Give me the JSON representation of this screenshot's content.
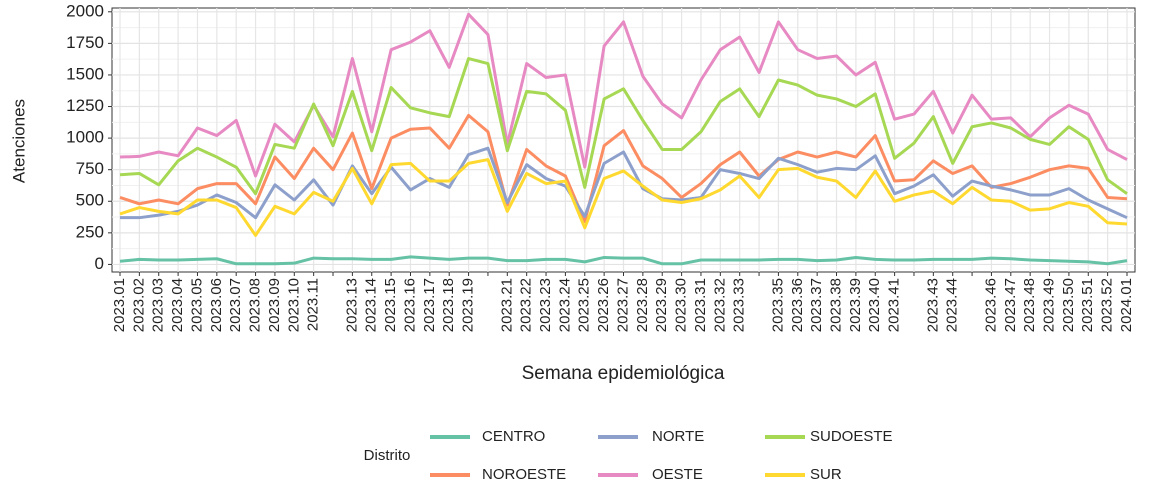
{
  "chart_data": {
    "type": "line",
    "y_label": "Atenciones",
    "x_label": "Semana epidemiológica",
    "legend_title": "Distrito",
    "categories": [
      "2023.01",
      "2023.02",
      "2023.03",
      "2023.04",
      "2023.05",
      "2023.06",
      "2023.07",
      "2023.08",
      "2023.09",
      "2023.10",
      "2023.11",
      null,
      "2023.13",
      "2023.14",
      "2023.15",
      "2023.16",
      "2023.17",
      "2023.18",
      "2023.19",
      null,
      "2023.21",
      "2023.22",
      "2023.23",
      "2023.24",
      "2023.25",
      "2023.26",
      "2023.27",
      "2023.28",
      "2023.29",
      "2023.30",
      "2023.31",
      "2023.32",
      "2023.33",
      null,
      "2023.35",
      "2023.36",
      "2023.37",
      "2023.38",
      "2023.39",
      "2023.40",
      "2023.41",
      null,
      "2023.43",
      "2023.44",
      null,
      "2023.46",
      "2023.47",
      "2023.48",
      "2023.49",
      "2023.50",
      "2023.51",
      "2023.52",
      "2024.01"
    ],
    "ylim": [
      -60,
      2030
    ],
    "yticks": [
      0,
      250,
      500,
      750,
      1000,
      1250,
      1500,
      1750,
      2000
    ],
    "grid": true,
    "legend_position": "bottom",
    "series": [
      {
        "name": "CENTRO",
        "color": "#66c2a5",
        "values": [
          25,
          40,
          35,
          35,
          40,
          45,
          5,
          5,
          5,
          10,
          50,
          45,
          45,
          40,
          40,
          60,
          50,
          40,
          50,
          50,
          30,
          30,
          40,
          40,
          20,
          55,
          50,
          50,
          5,
          5,
          35,
          35,
          35,
          35,
          40,
          40,
          30,
          35,
          55,
          40,
          35,
          35,
          40,
          40,
          40,
          50,
          45,
          35,
          30,
          25,
          20,
          5,
          30
        ]
      },
      {
        "name": "NOROESTE",
        "color": "#fc8d62",
        "values": [
          530,
          480,
          510,
          480,
          600,
          640,
          640,
          480,
          850,
          680,
          920,
          750,
          1040,
          600,
          1000,
          1070,
          1080,
          920,
          1180,
          1050,
          470,
          910,
          780,
          700,
          340,
          940,
          1060,
          780,
          680,
          530,
          640,
          790,
          890,
          700,
          830,
          890,
          850,
          890,
          850,
          1020,
          660,
          670,
          820,
          720,
          780,
          610,
          640,
          690,
          750,
          780,
          760,
          530,
          520
        ]
      },
      {
        "name": "NORTE",
        "color": "#8da0cb",
        "values": [
          370,
          370,
          390,
          420,
          470,
          550,
          490,
          370,
          630,
          510,
          670,
          470,
          780,
          560,
          770,
          590,
          680,
          610,
          870,
          920,
          490,
          790,
          680,
          620,
          380,
          800,
          890,
          600,
          520,
          510,
          530,
          750,
          720,
          680,
          840,
          790,
          730,
          760,
          750,
          860,
          560,
          620,
          710,
          540,
          660,
          620,
          590,
          550,
          550,
          600,
          510,
          440,
          370
        ]
      },
      {
        "name": "OESTE",
        "color": "#e78ac3",
        "values": [
          850,
          855,
          890,
          860,
          1080,
          1020,
          1140,
          700,
          1110,
          970,
          1260,
          1010,
          1630,
          1050,
          1700,
          1760,
          1850,
          1560,
          1980,
          1820,
          950,
          1590,
          1480,
          1500,
          770,
          1730,
          1920,
          1490,
          1270,
          1160,
          1460,
          1700,
          1800,
          1520,
          1920,
          1700,
          1630,
          1650,
          1500,
          1600,
          1150,
          1190,
          1370,
          1040,
          1340,
          1150,
          1160,
          1010,
          1160,
          1260,
          1190,
          910,
          830
        ]
      },
      {
        "name": "SUDOESTE",
        "color": "#a6d854",
        "values": [
          710,
          720,
          630,
          820,
          920,
          850,
          770,
          560,
          950,
          920,
          1270,
          940,
          1370,
          900,
          1400,
          1240,
          1200,
          1170,
          1630,
          1590,
          900,
          1370,
          1350,
          1220,
          610,
          1310,
          1390,
          1140,
          910,
          910,
          1050,
          1290,
          1390,
          1170,
          1460,
          1420,
          1340,
          1310,
          1250,
          1350,
          840,
          960,
          1170,
          800,
          1090,
          1120,
          1080,
          990,
          950,
          1090,
          990,
          670,
          560
        ]
      },
      {
        "name": "SUR",
        "color": "#ffd92f",
        "values": [
          400,
          450,
          420,
          400,
          510,
          510,
          450,
          230,
          460,
          400,
          570,
          500,
          760,
          480,
          790,
          800,
          660,
          660,
          800,
          830,
          420,
          720,
          640,
          660,
          290,
          680,
          740,
          620,
          510,
          490,
          520,
          590,
          700,
          530,
          750,
          760,
          690,
          660,
          530,
          740,
          500,
          550,
          580,
          480,
          610,
          510,
          500,
          430,
          440,
          490,
          460,
          330,
          320
        ]
      }
    ]
  }
}
